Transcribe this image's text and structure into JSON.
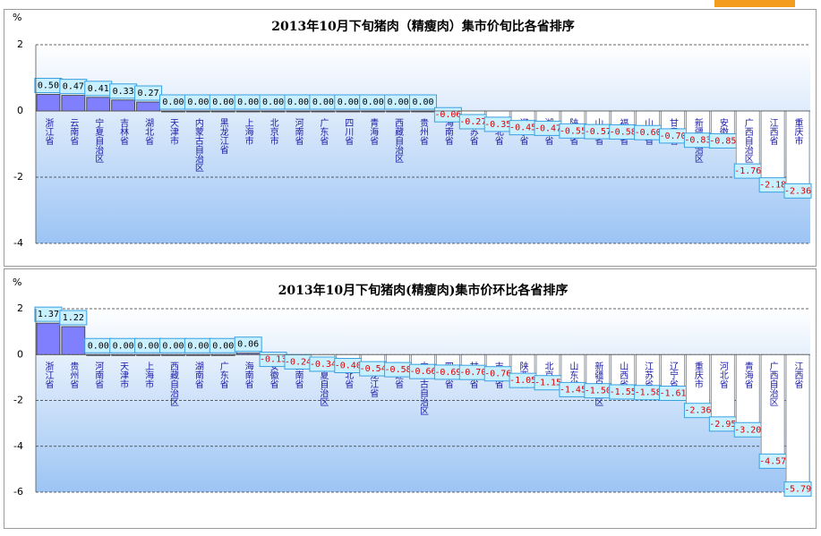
{
  "chart_data": [
    {
      "type": "bar",
      "title": "2013年10月下旬猪肉（精瘦肉）集市价旬比各省排序",
      "y_label": "%",
      "categories": [
        "浙江省",
        "云南省",
        "宁夏自治区",
        "吉林省",
        "湖北省",
        "天津市",
        "内蒙古自治区",
        "黑龙江省",
        "上海市",
        "北京市",
        "河南省",
        "广东省",
        "四川省",
        "青海省",
        "西藏自治区",
        "贵州省",
        "海南省",
        "江苏省",
        "河北省",
        "辽宁省",
        "湖南省",
        "陕西省",
        "山西省",
        "福建省",
        "山东省",
        "甘肃省",
        "新疆自治区",
        "安徽省",
        "广西自治区",
        "江西省",
        "重庆市"
      ],
      "values": [
        0.5,
        0.47,
        0.41,
        0.33,
        0.27,
        0,
        0,
        0,
        0,
        0,
        0,
        0,
        0,
        0,
        0,
        0,
        -0.06,
        -0.27,
        -0.35,
        -0.45,
        -0.47,
        -0.55,
        -0.57,
        -0.58,
        -0.6,
        -0.7,
        -0.83,
        -0.85,
        -1.76,
        -2.18,
        -2.36
      ],
      "value_labels": [
        "0.50",
        "0.47",
        "0.41",
        "0.33",
        "0.27",
        "0.00",
        "0.00",
        "0.00",
        "0.00",
        "0.00",
        "0.00",
        "0.00",
        "0.00",
        "0.00",
        "0.00",
        "0.00",
        "-0.06",
        "-0.27",
        "-0.35",
        "-0.45",
        "-0.47",
        "-0.55",
        "-0.57",
        "-0.58",
        "-0.60",
        "-0.70",
        "-0.83",
        "-0.85",
        "-1.76",
        "-2.18",
        "-2.36"
      ],
      "color": "#8080ff",
      "ylim": [
        -4,
        2
      ],
      "yticks": [
        -4,
        -2,
        0,
        2
      ],
      "grid": true
    },
    {
      "type": "bar",
      "title": "2013年10月下旬猪肉(精瘦肉)集市价环比各省排序",
      "y_label": "%",
      "categories": [
        "浙江省",
        "贵州省",
        "河南省",
        "天津市",
        "上海市",
        "西藏自治区",
        "湖南省",
        "广东省",
        "海南省",
        "安徽省",
        "云南省",
        "宁夏自治区",
        "湖北省",
        "黑龙江省",
        "福建省",
        "内蒙古自治区",
        "四川省",
        "甘肃省",
        "吉林省",
        "陕西省",
        "北京市",
        "山东省",
        "新疆自治区",
        "山西省",
        "江苏省",
        "辽宁省",
        "重庆市",
        "河北省",
        "青海省",
        "广西自治区",
        "江西省"
      ],
      "values": [
        1.37,
        1.22,
        0,
        0,
        0,
        0,
        0,
        0,
        0.06,
        -0.13,
        -0.24,
        -0.34,
        -0.4,
        -0.54,
        -0.58,
        -0.66,
        -0.69,
        -0.7,
        -0.76,
        -1.05,
        -1.15,
        -1.45,
        -1.5,
        -1.55,
        -1.58,
        -1.61,
        -2.36,
        -2.95,
        -3.2,
        -4.57,
        -5.79
      ],
      "value_labels": [
        "1.37",
        "1.22",
        "0.00",
        "0.00",
        "0.00",
        "0.00",
        "0.00",
        "0.00",
        "0.06",
        "-0.13",
        "-0.24",
        "-0.34",
        "-0.40",
        "-0.54",
        "-0.58",
        "-0.66",
        "-0.69",
        "-0.70",
        "-0.76",
        "-1.05",
        "-1.15",
        "-1.45",
        "-1.50",
        "-1.55",
        "-1.58",
        "-1.61",
        "-2.36",
        "-2.95",
        "-3.20",
        "-4.57",
        "-5.79"
      ],
      "color": "#8080ff",
      "ylim": [
        -6,
        2
      ],
      "yticks": [
        -6,
        -4,
        -2,
        0,
        2
      ],
      "grid": true
    }
  ]
}
